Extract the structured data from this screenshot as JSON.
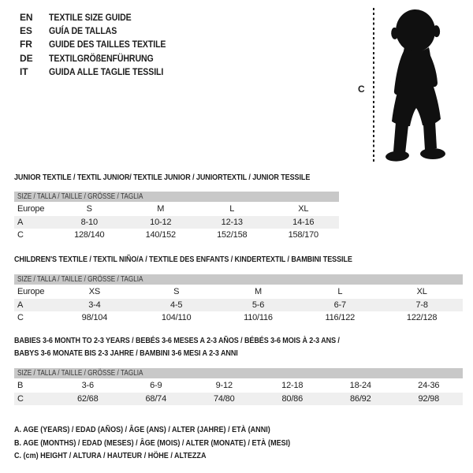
{
  "lang_guide": {
    "items": [
      {
        "code": "EN",
        "label": "TEXTILE SIZE GUIDE"
      },
      {
        "code": "ES",
        "label": "GUÍA DE TALLAS"
      },
      {
        "code": "FR",
        "label": "GUIDE DES TAILLES TEXTILE"
      },
      {
        "code": "DE",
        "label": "TEXTILGRÖßENFÜHRUNG"
      },
      {
        "code": "IT",
        "label": "GUIDA ALLE TAGLIE TESSILI"
      }
    ]
  },
  "figure": {
    "measure_label": "C",
    "illustration": "toddler-silhouette"
  },
  "sections": {
    "junior": {
      "title": "JUNIOR TEXTILE / TEXTIL JUNIOR/ TEXTILE JUNIOR / JUNIORTEXTIL / JUNIOR TESSILE",
      "size_band": "SIZE / TALLA / TAILLE / GRÖSSE / TAGLIA",
      "rows": [
        {
          "label": "Europe",
          "values": [
            "S",
            "M",
            "L",
            "XL"
          ],
          "shade": false
        },
        {
          "label": "A",
          "values": [
            "8-10",
            "10-12",
            "12-13",
            "14-16"
          ],
          "shade": true
        },
        {
          "label": "C",
          "values": [
            "128/140",
            "140/152",
            "152/158",
            "158/170"
          ],
          "shade": false
        }
      ]
    },
    "children": {
      "title": "CHILDREN'S TEXTILE / TEXTIL NIÑO/A / TEXTILE DES ENFANTS / KINDERTEXTIL / BAMBINI TESSILE",
      "size_band": "SIZE / TALLA / TAILLE / GRÖSSE / TAGLIA",
      "rows": [
        {
          "label": "Europe",
          "values": [
            "XS",
            "S",
            "M",
            "L",
            "XL"
          ],
          "shade": false
        },
        {
          "label": "A",
          "values": [
            "3-4",
            "4-5",
            "5-6",
            "6-7",
            "7-8"
          ],
          "shade": true
        },
        {
          "label": "C",
          "values": [
            "98/104",
            "104/110",
            "110/116",
            "116/122",
            "122/128"
          ],
          "shade": false
        }
      ]
    },
    "babies": {
      "title_line1": "BABIES 3-6 MONTH TO 2-3 YEARS / BEBÉS 3-6 MESES A 2-3 AÑOS / BÉBÉS 3-6 MOIS À 2-3 ANS /",
      "title_line2": "BABYS 3-6 MONATE BIS 2-3 JAHRE / BAMBINI 3-6 MESI A 2-3 ANNI",
      "size_band": "SIZE / TALLA / TAILLE / GRÖSSE / TAGLIA",
      "rows": [
        {
          "label": "B",
          "values": [
            "3-6",
            "6-9",
            "9-12",
            "12-18",
            "18-24",
            "24-36"
          ],
          "shade": false
        },
        {
          "label": "C",
          "values": [
            "62/68",
            "68/74",
            "74/80",
            "80/86",
            "86/92",
            "92/98"
          ],
          "shade": true
        }
      ]
    }
  },
  "footnotes": [
    "A. AGE (YEARS) / EDAD (AÑOS) / ÂGE (ANS) / ALTER (JAHRE) / ETÀ (ANNI)",
    "B. AGE (MONTHS) / EDAD (MESES) / ÂGE (MOIS) / ALTER (MONATE) / ETÀ (MESI)",
    "C. (cm) HEIGHT / ALTURA / HAUTEUR / HÖHE / ALTEZZA"
  ],
  "colors": {
    "band": "#c8c8c8",
    "row_shade": "#efefef",
    "text": "#1d1d1d",
    "silhouette": "#101010"
  }
}
